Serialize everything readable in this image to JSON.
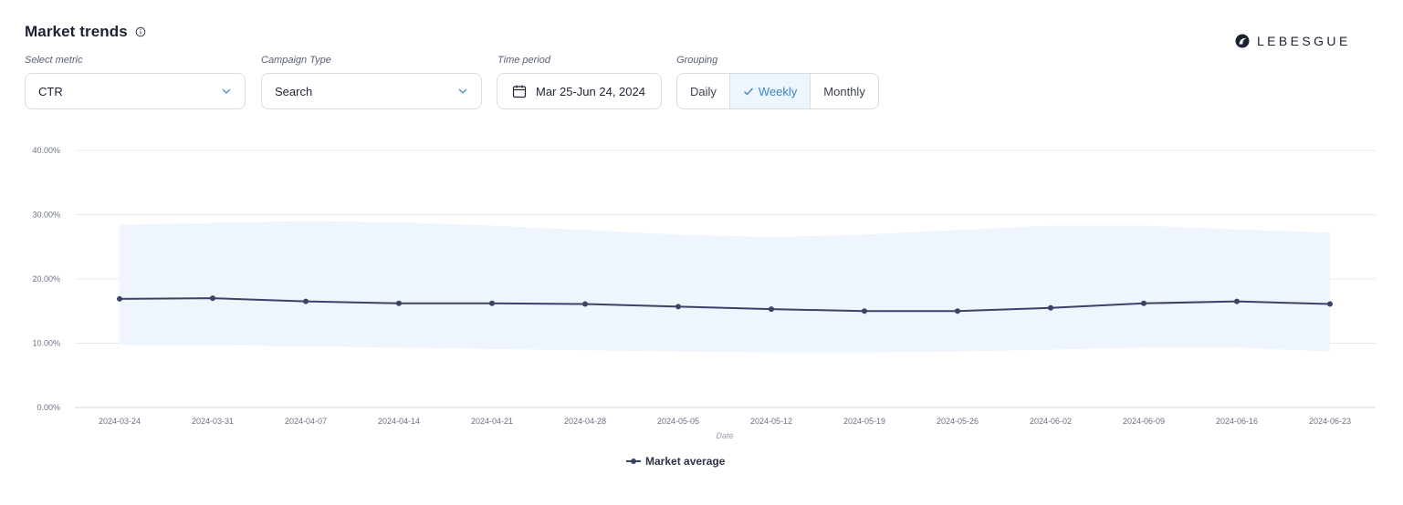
{
  "header": {
    "title": "Market trends",
    "brand": "LEBESGUE"
  },
  "controls": {
    "metric": {
      "label": "Select metric",
      "value": "CTR"
    },
    "campaign": {
      "label": "Campaign Type",
      "value": "Search"
    },
    "period": {
      "label": "Time period",
      "value": "Mar 25-Jun 24, 2024"
    },
    "grouping": {
      "label": "Grouping",
      "options": [
        "Daily",
        "Weekly",
        "Monthly"
      ],
      "selected": "Weekly"
    }
  },
  "colors": {
    "line": "#3a4266",
    "band": "#eef5fd",
    "grid": "#e8eaef",
    "active": "#3a86c8"
  },
  "chart_data": {
    "type": "line",
    "xlabel": "Date",
    "ylabel": "",
    "ylim": [
      0,
      40
    ],
    "yticks": [
      "0.00%",
      "10.00%",
      "20.00%",
      "30.00%",
      "40.00%"
    ],
    "x": [
      "2024-03-24",
      "2024-03-31",
      "2024-04-07",
      "2024-04-14",
      "2024-04-21",
      "2024-04-28",
      "2024-05-05",
      "2024-05-12",
      "2024-05-19",
      "2024-05-26",
      "2024-06-02",
      "2024-06-09",
      "2024-06-16",
      "2024-06-23"
    ],
    "series": [
      {
        "name": "Market average",
        "values": [
          16.9,
          17.0,
          16.5,
          16.2,
          16.2,
          16.1,
          15.7,
          15.3,
          15.0,
          15.0,
          15.5,
          16.2,
          16.5,
          16.1
        ]
      }
    ],
    "band": {
      "upper": [
        28.4,
        28.7,
        29.0,
        28.8,
        28.3,
        27.6,
        26.9,
        26.5,
        26.9,
        27.6,
        28.3,
        28.3,
        27.7,
        27.2
      ],
      "lower": [
        9.7,
        9.7,
        9.5,
        9.3,
        9.1,
        8.9,
        8.7,
        8.6,
        8.6,
        8.7,
        9.0,
        9.3,
        9.3,
        8.7
      ]
    },
    "legend": "bottom-center",
    "grid": true
  }
}
